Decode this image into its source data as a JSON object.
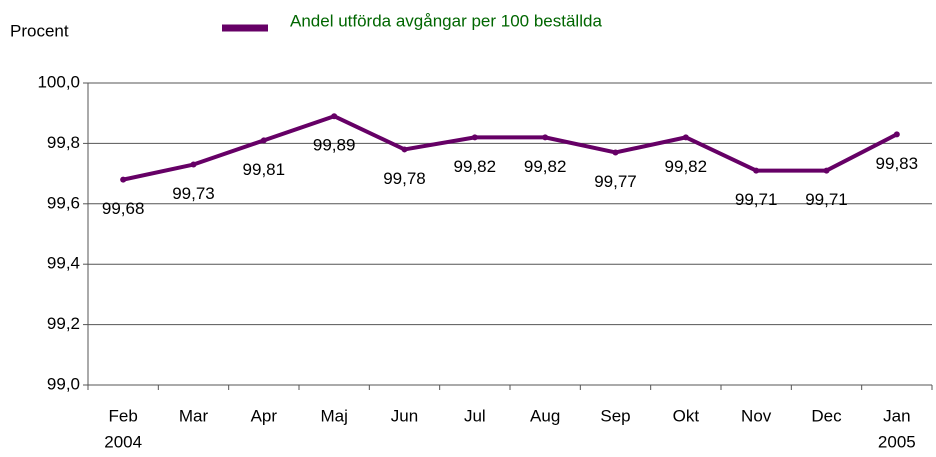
{
  "chart_data": {
    "type": "line",
    "y_label": "Procent",
    "categories": [
      "Feb",
      "Mar",
      "Apr",
      "Maj",
      "Jun",
      "Jul",
      "Aug",
      "Sep",
      "Okt",
      "Nov",
      "Dec",
      "Jan"
    ],
    "category_years": [
      "2004",
      null,
      null,
      null,
      null,
      null,
      null,
      null,
      null,
      null,
      null,
      "2005"
    ],
    "series": [
      {
        "name": "Andel utförda avgångar per 100 beställda",
        "color": "#660066",
        "values": [
          99.68,
          99.73,
          99.81,
          99.89,
          99.78,
          99.82,
          99.82,
          99.77,
          99.82,
          99.71,
          99.71,
          99.83
        ],
        "value_labels": [
          "99,68",
          "99,73",
          "99,81",
          "99,89",
          "99,78",
          "99,82",
          "99,82",
          "99,77",
          "99,82",
          "99,71",
          "99,71",
          "99,83"
        ]
      }
    ],
    "ylim": [
      99.0,
      100.0
    ],
    "yticks": [
      {
        "value": 99.0,
        "label": "99,0"
      },
      {
        "value": 99.2,
        "label": "99,2"
      },
      {
        "value": 99.4,
        "label": "99,4"
      },
      {
        "value": 99.6,
        "label": "99,6"
      },
      {
        "value": 99.8,
        "label": "99,8"
      },
      {
        "value": 100.0,
        "label": "100,0"
      }
    ],
    "grid": true,
    "legend": "top"
  }
}
